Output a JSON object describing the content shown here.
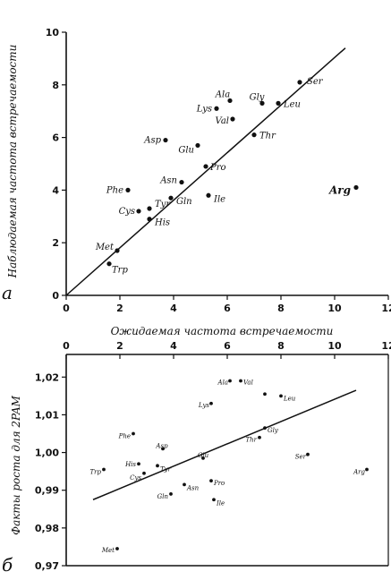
{
  "chart_data": [
    {
      "type": "scatter",
      "panel_letter": "а",
      "title": "",
      "xlabel": "Ожидаемая    частота встречаемости",
      "ylabel": "Наблюдаемая частота встречаемости",
      "xlim": [
        0,
        12
      ],
      "ylim": [
        0,
        10
      ],
      "xticks": [
        "0",
        "2",
        "4",
        "6",
        "8",
        "10",
        "12"
      ],
      "yticks": [
        "0",
        "2",
        "4",
        "6",
        "8",
        "10"
      ],
      "grid": false,
      "fit_line": {
        "x": [
          0,
          10.4
        ],
        "y": [
          0,
          9.4
        ]
      },
      "points": [
        {
          "label": "Ser",
          "x": 8.7,
          "y": 8.1
        },
        {
          "label": "Leu",
          "x": 7.9,
          "y": 7.3
        },
        {
          "label": "Gly",
          "x": 7.3,
          "y": 7.3
        },
        {
          "label": "Ala",
          "x": 6.1,
          "y": 7.4
        },
        {
          "label": "Lys",
          "x": 5.6,
          "y": 7.1
        },
        {
          "label": "Val",
          "x": 6.2,
          "y": 6.7
        },
        {
          "label": "Thr",
          "x": 7.0,
          "y": 6.1
        },
        {
          "label": "Asp",
          "x": 3.7,
          "y": 5.9
        },
        {
          "label": "Glu",
          "x": 4.9,
          "y": 5.7
        },
        {
          "label": "Pro",
          "x": 5.2,
          "y": 4.9
        },
        {
          "label": "Asn",
          "x": 4.3,
          "y": 4.3
        },
        {
          "label": "Phe",
          "x": 2.3,
          "y": 4.0
        },
        {
          "label": "Ile",
          "x": 5.3,
          "y": 3.8
        },
        {
          "label": "Tyr",
          "x": 3.1,
          "y": 3.3
        },
        {
          "label": "Gln",
          "x": 3.9,
          "y": 3.7
        },
        {
          "label": "Cys",
          "x": 2.7,
          "y": 3.2
        },
        {
          "label": "His",
          "x": 3.1,
          "y": 2.9
        },
        {
          "label": "Met",
          "x": 1.9,
          "y": 1.7
        },
        {
          "label": "Trp",
          "x": 1.6,
          "y": 1.2
        },
        {
          "label": "Arg",
          "x": 10.8,
          "y": 4.1
        }
      ]
    },
    {
      "type": "scatter",
      "panel_letter": "б",
      "title": "",
      "xlabel": "",
      "ylabel": "Факты роста для 2PAM",
      "xlim": [
        0,
        12
      ],
      "ylim": [
        0.97,
        1.026
      ],
      "xticks": [
        "0",
        "2",
        "4",
        "6",
        "8",
        "10",
        "12"
      ],
      "yticks": [
        "0,97",
        "0,98",
        "0,99",
        "1,00",
        "1,01",
        "1,02"
      ],
      "grid": false,
      "fit_line": {
        "x": [
          1.0,
          10.8
        ],
        "y": [
          0.9875,
          1.0165
        ]
      },
      "points": [
        {
          "label": "Ala",
          "x": 6.1,
          "y": 1.019
        },
        {
          "label": "Val",
          "x": 6.5,
          "y": 1.019
        },
        {
          "label": "",
          "x": 7.4,
          "y": 1.0155
        },
        {
          "label": "Leu",
          "x": 8.0,
          "y": 1.015
        },
        {
          "label": "Lys",
          "x": 5.4,
          "y": 1.013
        },
        {
          "label": "Gly",
          "x": 7.4,
          "y": 1.0065
        },
        {
          "label": "Thr",
          "x": 7.2,
          "y": 1.004
        },
        {
          "label": "Ser",
          "x": 9.0,
          "y": 0.9995
        },
        {
          "label": "Phe",
          "x": 2.5,
          "y": 1.005
        },
        {
          "label": "Asp",
          "x": 3.6,
          "y": 1.001
        },
        {
          "label": "Glu",
          "x": 5.1,
          "y": 0.9985
        },
        {
          "label": "His",
          "x": 2.7,
          "y": 0.997
        },
        {
          "label": "Tyr",
          "x": 3.4,
          "y": 0.9965
        },
        {
          "label": "Cys",
          "x": 2.9,
          "y": 0.9945
        },
        {
          "label": "Trp",
          "x": 1.4,
          "y": 0.9955
        },
        {
          "label": "Pro",
          "x": 5.4,
          "y": 0.9925
        },
        {
          "label": "Asn",
          "x": 4.4,
          "y": 0.9915
        },
        {
          "label": "Gln",
          "x": 3.9,
          "y": 0.989
        },
        {
          "label": "Ile",
          "x": 5.5,
          "y": 0.9875
        },
        {
          "label": "Arg",
          "x": 11.2,
          "y": 0.9955
        },
        {
          "label": "Met",
          "x": 1.9,
          "y": 0.9745
        }
      ]
    }
  ]
}
